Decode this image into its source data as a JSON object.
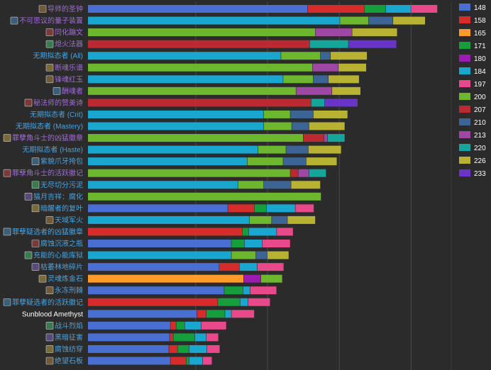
{
  "chart_data": {
    "type": "bar",
    "stacked": true,
    "orientation": "horizontal",
    "title": "",
    "xlabel": "",
    "ylabel": "",
    "grid": true,
    "legend_position": "right",
    "item_levels": [
      "148",
      "158",
      "165",
      "171",
      "180",
      "184",
      "197",
      "200",
      "207",
      "210",
      "213",
      "220",
      "226",
      "233"
    ],
    "colors": {
      "148": "#4a6fd2",
      "158": "#d62c2c",
      "165": "#ff9b2b",
      "171": "#159f3c",
      "180": "#9c1bb0",
      "184": "#19a7cf",
      "197": "#e8498a",
      "200": "#6db72e",
      "207": "#bd2930",
      "210": "#3c6596",
      "213": "#9e47a4",
      "220": "#14a69a",
      "226": "#b8b232",
      "233": "#6a34c9"
    },
    "categories": [
      {
        "name": "导师的圣钟",
        "color": "#a06bd9",
        "icon": true
      },
      {
        "name": "不可思议的量子装置",
        "color": "#a06bd9",
        "icon": true
      },
      {
        "name": "同化蹦文",
        "color": "#a06bd9",
        "icon": true
      },
      {
        "name": "熄火法器",
        "color": "#a06bd9",
        "icon": true
      },
      {
        "name": "无期拟态者 (All)",
        "color": "#4aa3df",
        "icon": false
      },
      {
        "name": "断魂乐谱",
        "color": "#a06bd9",
        "icon": true
      },
      {
        "name": "锋魂红玉",
        "color": "#a06bd9",
        "icon": true
      },
      {
        "name": "酬魂者",
        "color": "#a06bd9",
        "icon": true
      },
      {
        "name": "秘法师的赞美诗",
        "color": "#a06bd9",
        "icon": true
      },
      {
        "name": "无期拟态者 (Crit)",
        "color": "#4aa3df",
        "icon": false
      },
      {
        "name": "无期拟态者 (Mastery)",
        "color": "#4aa3df",
        "icon": false
      },
      {
        "name": "罪孽角斗士的凶猛徽章",
        "color": "#a06bd9",
        "icon": true
      },
      {
        "name": "无期拟态者 (Haste)",
        "color": "#4aa3df",
        "icon": false
      },
      {
        "name": "紫貌爪牙挎包",
        "color": "#4aa3df",
        "icon": true
      },
      {
        "name": "罪孽角斗士的活跃徽记",
        "color": "#a06bd9",
        "icon": true
      },
      {
        "name": "无尽切分污泥",
        "color": "#4aa3df",
        "icon": true
      },
      {
        "name": "猫月吉祥：腐化",
        "color": "#4aa3df",
        "icon": true
      },
      {
        "name": "暗醒者的复叶",
        "color": "#4aa3df",
        "icon": true
      },
      {
        "name": "天域军火",
        "color": "#4aa3df",
        "icon": true
      },
      {
        "name": "罪孽疑选者的凶猛徽章",
        "color": "#4aa3df",
        "icon": true
      },
      {
        "name": "腐蚀沉液之瓶",
        "color": "#4aa3df",
        "icon": true
      },
      {
        "name": "充能的心能库狱",
        "color": "#4aa3df",
        "icon": true
      },
      {
        "name": "枯萎林地碎片",
        "color": "#4aa3df",
        "icon": true
      },
      {
        "name": "灵魂炼金石",
        "color": "#4aa3df",
        "icon": true
      },
      {
        "name": "永冻刑棘",
        "color": "#4aa3df",
        "icon": true
      },
      {
        "name": "罪孽疑选者的活跃徽记",
        "color": "#4aa3df",
        "icon": true
      },
      {
        "name": "Sunblood Amethyst",
        "color": "#ffffff",
        "icon": false
      },
      {
        "name": "战斗烈焰",
        "color": "#4aa3df",
        "icon": true
      },
      {
        "name": "黑暗征害",
        "color": "#4aa3df",
        "icon": true
      },
      {
        "name": "腐蚀纺穿",
        "color": "#4aa3df",
        "icon": true
      },
      {
        "name": "绝望石板",
        "color": "#4aa3df",
        "icon": true
      }
    ],
    "x_gridlines": [
      1500,
      2500,
      3500,
      4500
    ],
    "xlim": [
      0,
      5000
    ],
    "series_data": [
      [
        [
          "148",
          3060
        ],
        [
          "158",
          790
        ],
        [
          "171",
          300
        ],
        [
          "184",
          350
        ],
        [
          "197",
          370
        ]
      ],
      [
        [
          "184",
          3510
        ],
        [
          "200",
          400
        ],
        [
          "210",
          340
        ],
        [
          "226",
          450
        ]
      ],
      [
        [
          "200",
          3170
        ],
        [
          "213",
          510
        ],
        [
          "226",
          630
        ]
      ],
      [
        [
          "207",
          3090
        ],
        [
          "220",
          540
        ],
        [
          "233",
          670
        ]
      ],
      [
        [
          "184",
          2690
        ],
        [
          "200",
          550
        ],
        [
          "210",
          140
        ],
        [
          "226",
          510
        ]
      ],
      [
        [
          "200",
          3130
        ],
        [
          "213",
          360
        ],
        [
          "226",
          390
        ]
      ],
      [
        [
          "184",
          2720
        ],
        [
          "200",
          420
        ],
        [
          "210",
          210
        ],
        [
          "226",
          430
        ]
      ],
      [
        [
          "200",
          2900
        ],
        [
          "213",
          500
        ],
        [
          "226",
          400
        ]
      ],
      [
        [
          "207",
          3110
        ],
        [
          "220",
          190
        ],
        [
          "233",
          460
        ]
      ],
      [
        [
          "184",
          2450
        ],
        [
          "200",
          370
        ],
        [
          "210",
          320
        ],
        [
          "226",
          480
        ]
      ],
      [
        [
          "184",
          2450
        ],
        [
          "200",
          390
        ],
        [
          "210",
          240
        ],
        [
          "226",
          500
        ]
      ],
      [
        [
          "200",
          3000
        ],
        [
          "207",
          290
        ],
        [
          "213",
          50
        ],
        [
          "220",
          240
        ]
      ],
      [
        [
          "184",
          2370
        ],
        [
          "200",
          390
        ],
        [
          "210",
          310
        ],
        [
          "226",
          460
        ]
      ],
      [
        [
          "184",
          2220
        ],
        [
          "200",
          500
        ],
        [
          "210",
          320
        ],
        [
          "226",
          430
        ]
      ],
      [
        [
          "200",
          2820
        ],
        [
          "207",
          110
        ],
        [
          "213",
          150
        ],
        [
          "220",
          240
        ]
      ],
      [
        [
          "184",
          2090
        ],
        [
          "200",
          360
        ],
        [
          "210",
          380
        ],
        [
          "226",
          410
        ]
      ],
      [
        [
          "200",
          3250
        ]
      ],
      [
        [
          "148",
          1950
        ],
        [
          "158",
          370
        ],
        [
          "171",
          170
        ],
        [
          "184",
          400
        ],
        [
          "197",
          260
        ]
      ],
      [
        [
          "184",
          2250
        ],
        [
          "200",
          310
        ],
        [
          "210",
          220
        ],
        [
          "226",
          390
        ]
      ],
      [
        [
          "158",
          2150
        ],
        [
          "171",
          90
        ],
        [
          "184",
          390
        ],
        [
          "197",
          230
        ]
      ],
      [
        [
          "148",
          2000
        ],
        [
          "171",
          180
        ],
        [
          "184",
          250
        ],
        [
          "197",
          390
        ]
      ],
      [
        [
          "184",
          2000
        ],
        [
          "200",
          340
        ],
        [
          "210",
          160
        ],
        [
          "226",
          300
        ]
      ],
      [
        [
          "148",
          1830
        ],
        [
          "158",
          280
        ],
        [
          "184",
          250
        ],
        [
          "197",
          370
        ]
      ],
      [
        [
          "165",
          2170
        ],
        [
          "180",
          240
        ],
        [
          "200",
          300
        ]
      ],
      [
        [
          "148",
          1900
        ],
        [
          "171",
          260
        ],
        [
          "184",
          100
        ],
        [
          "197",
          370
        ]
      ],
      [
        [
          "158",
          1810
        ],
        [
          "171",
          310
        ],
        [
          "184",
          110
        ],
        [
          "197",
          310
        ]
      ],
      [
        [
          "148",
          1520
        ],
        [
          "158",
          130
        ],
        [
          "171",
          260
        ],
        [
          "184",
          90
        ],
        [
          "197",
          320
        ]
      ],
      [
        [
          "148",
          1150
        ],
        [
          "158",
          80
        ],
        [
          "171",
          120
        ],
        [
          "184",
          230
        ],
        [
          "197",
          350
        ]
      ],
      [
        [
          "148",
          1140
        ],
        [
          "158",
          50
        ],
        [
          "171",
          300
        ],
        [
          "184",
          160
        ],
        [
          "197",
          170
        ]
      ],
      [
        [
          "148",
          1130
        ],
        [
          "158",
          120
        ],
        [
          "171",
          160
        ],
        [
          "184",
          250
        ],
        [
          "197",
          180
        ]
      ],
      [
        [
          "148",
          1150
        ],
        [
          "158",
          220
        ],
        [
          "171",
          40
        ],
        [
          "184",
          190
        ],
        [
          "197",
          130
        ]
      ]
    ]
  }
}
